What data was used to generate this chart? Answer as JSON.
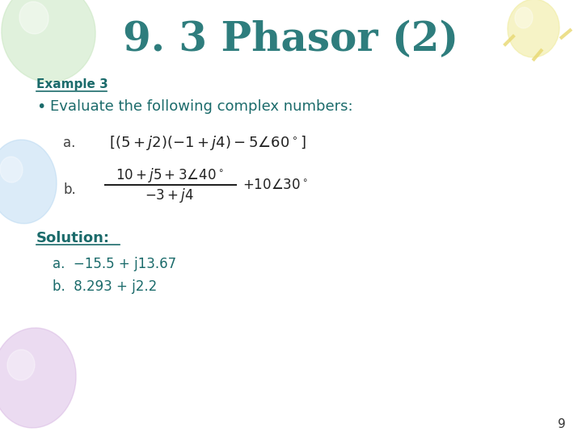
{
  "title": "9. 3 Phasor (2)",
  "title_color": "#2E7D7D",
  "title_fontsize": 36,
  "bg_color": "#FFFFFF",
  "example_label": "Example 3",
  "bullet_text": "Evaluate the following complex numbers:",
  "label_a": "a.",
  "label_b": "b.",
  "solution_label": "Solution:",
  "sol_a": "a.  −15.5 + j13.67",
  "sol_b": "b.  8.293 + j2.2",
  "main_color": "#1B6B6B",
  "page_num": "9",
  "balloon_green": "#C8E6C0",
  "balloon_yellow": "#F0ECA0",
  "balloon_blue": "#B0D4F0",
  "balloon_purple": "#D4B0E0",
  "balloon_white": "#FFFFFF",
  "deco_yellow": "#E8D870"
}
